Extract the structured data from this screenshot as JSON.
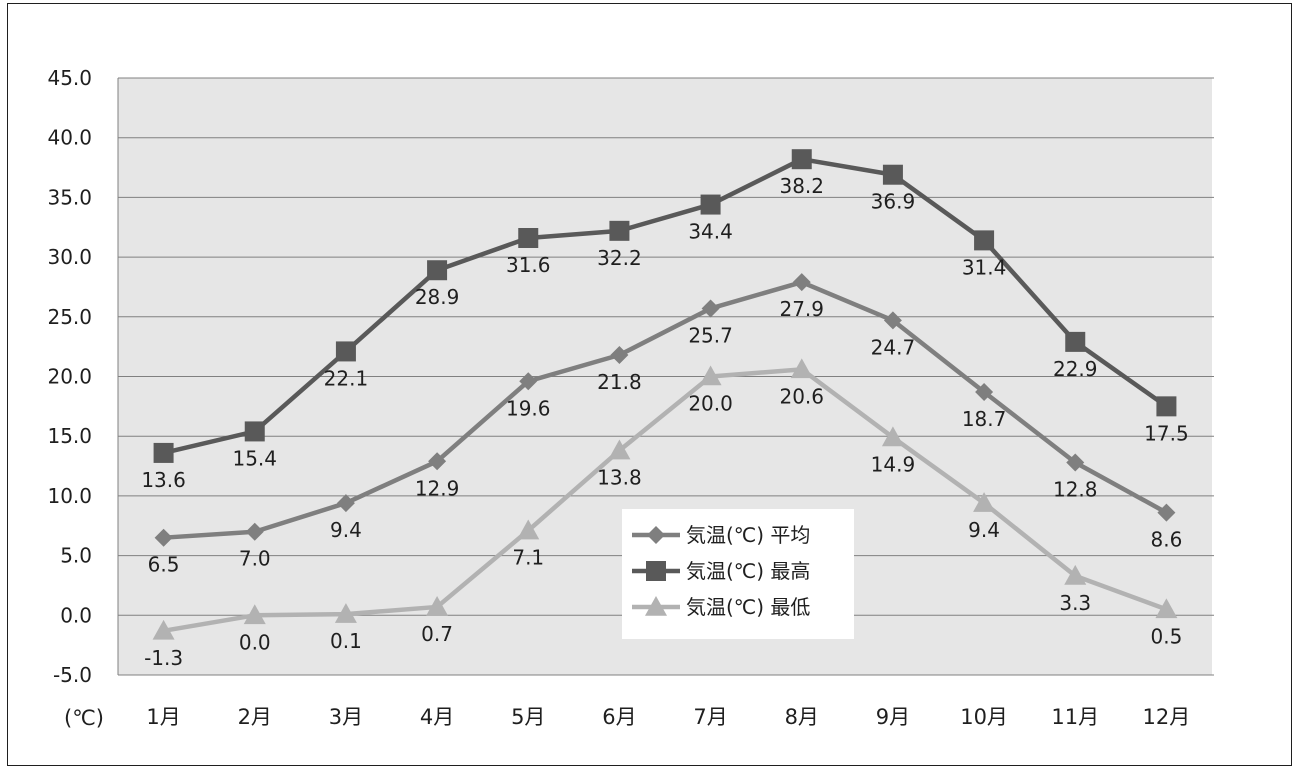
{
  "chart_data": {
    "type": "line",
    "title": "",
    "xlabel": "",
    "ylabel": "",
    "unit_label": "(℃)",
    "categories": [
      "1月",
      "2月",
      "3月",
      "4月",
      "5月",
      "6月",
      "7月",
      "8月",
      "9月",
      "10月",
      "11月",
      "12月"
    ],
    "ylim": [
      -5.0,
      45.0
    ],
    "yticks": [
      -5.0,
      0.0,
      5.0,
      10.0,
      15.0,
      20.0,
      25.0,
      30.0,
      35.0,
      40.0,
      45.0
    ],
    "ytick_labels": [
      "-5.0",
      "0.0",
      "5.0",
      "10.0",
      "15.0",
      "20.0",
      "25.0",
      "30.0",
      "35.0",
      "40.0",
      "45.0"
    ],
    "grid": true,
    "legend_position": "bottom-center",
    "series": [
      {
        "name": "気温(℃) 平均",
        "marker": "diamond",
        "color": "#7f7f7f",
        "values": [
          6.5,
          7.0,
          9.4,
          12.9,
          19.6,
          21.8,
          25.7,
          27.9,
          24.7,
          18.7,
          12.8,
          8.6
        ],
        "labels": [
          "6.5",
          "7.0",
          "9.4",
          "12.9",
          "19.6",
          "21.8",
          "25.7",
          "27.9",
          "24.7",
          "18.7",
          "12.8",
          "8.6"
        ]
      },
      {
        "name": "気温(℃) 最高",
        "marker": "square",
        "color": "#595959",
        "values": [
          13.6,
          15.4,
          22.1,
          28.9,
          31.6,
          32.2,
          34.4,
          38.2,
          36.9,
          31.4,
          22.9,
          17.5
        ],
        "labels": [
          "13.6",
          "15.4",
          "22.1",
          "28.9",
          "31.6",
          "32.2",
          "34.4",
          "38.2",
          "36.9",
          "31.4",
          "22.9",
          "17.5"
        ]
      },
      {
        "name": "気温(℃) 最低",
        "marker": "triangle",
        "color": "#b2b2b2",
        "values": [
          -1.3,
          0.0,
          0.1,
          0.7,
          7.1,
          13.8,
          20.0,
          20.6,
          14.9,
          9.4,
          3.3,
          0.5
        ],
        "labels": [
          "-1.3",
          "0.0",
          "0.1",
          "0.7",
          "7.1",
          "13.8",
          "20.0",
          "20.6",
          "14.9",
          "9.4",
          "3.3",
          "0.5"
        ]
      }
    ],
    "plot_background": "#e6e6e6",
    "grid_color": "#808080"
  }
}
